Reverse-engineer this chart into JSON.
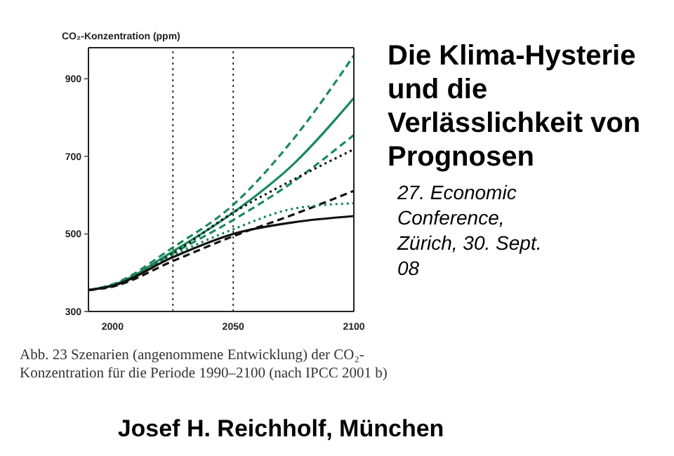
{
  "chart_data": {
    "type": "line",
    "title": "Die Klima-Hysterie und die Verlässlichkeit von Prognosen",
    "subtitle": "27. Economic Conference, Zürich, 30. Sept. 08",
    "ylabel": "CO₂-Konzentration (ppm)",
    "annotations": [
      "Abb. 23 Szenarien (angenommene Entwicklung) der CO₂-Konzentration für die Periode 1990–2100 (nach IPCC 2001 b)",
      "Josef H. Reichholf,  München"
    ],
    "x": [
      1990,
      2000,
      2025,
      2050,
      2075,
      2100
    ],
    "series": [
      {
        "color": "#1a8a5a",
        "line_style": "dashed",
        "values": [
          355,
          370,
          465,
          575,
          745,
          960
        ]
      },
      {
        "color": "#1a8a5a",
        "line_style": "solid",
        "values": [
          355,
          368,
          455,
          555,
          680,
          850
        ]
      },
      {
        "color": "#1a8a5a",
        "line_style": "dashed",
        "values": [
          355,
          367,
          450,
          536,
          635,
          755
        ]
      },
      {
        "color": "#111111",
        "line_style": "dotted",
        "values": [
          355,
          367,
          450,
          555,
          640,
          718
        ]
      },
      {
        "color": "#111111",
        "line_style": "dashed",
        "values": [
          355,
          364,
          430,
          494,
          550,
          611
        ]
      },
      {
        "color": "#1a8a5a",
        "line_style": "dotted",
        "values": [
          355,
          366,
          445,
          512,
          565,
          579
        ]
      },
      {
        "color": "#111111",
        "line_style": "solid",
        "values": [
          355,
          366,
          440,
          500,
          530,
          546
        ]
      }
    ],
    "xlim": [
      1990,
      2100
    ],
    "xticks": [
      2000,
      2050,
      2100
    ],
    "ylim": [
      300,
      980
    ],
    "yticks": [
      300,
      500,
      700,
      900
    ],
    "ref_lines": [
      {
        "axis": "x",
        "value": 2025,
        "color": "#333333",
        "line_style": "dotted"
      },
      {
        "axis": "x",
        "value": 2050,
        "color": "#333333",
        "line_style": "dotted"
      }
    ],
    "marker": "none"
  }
}
